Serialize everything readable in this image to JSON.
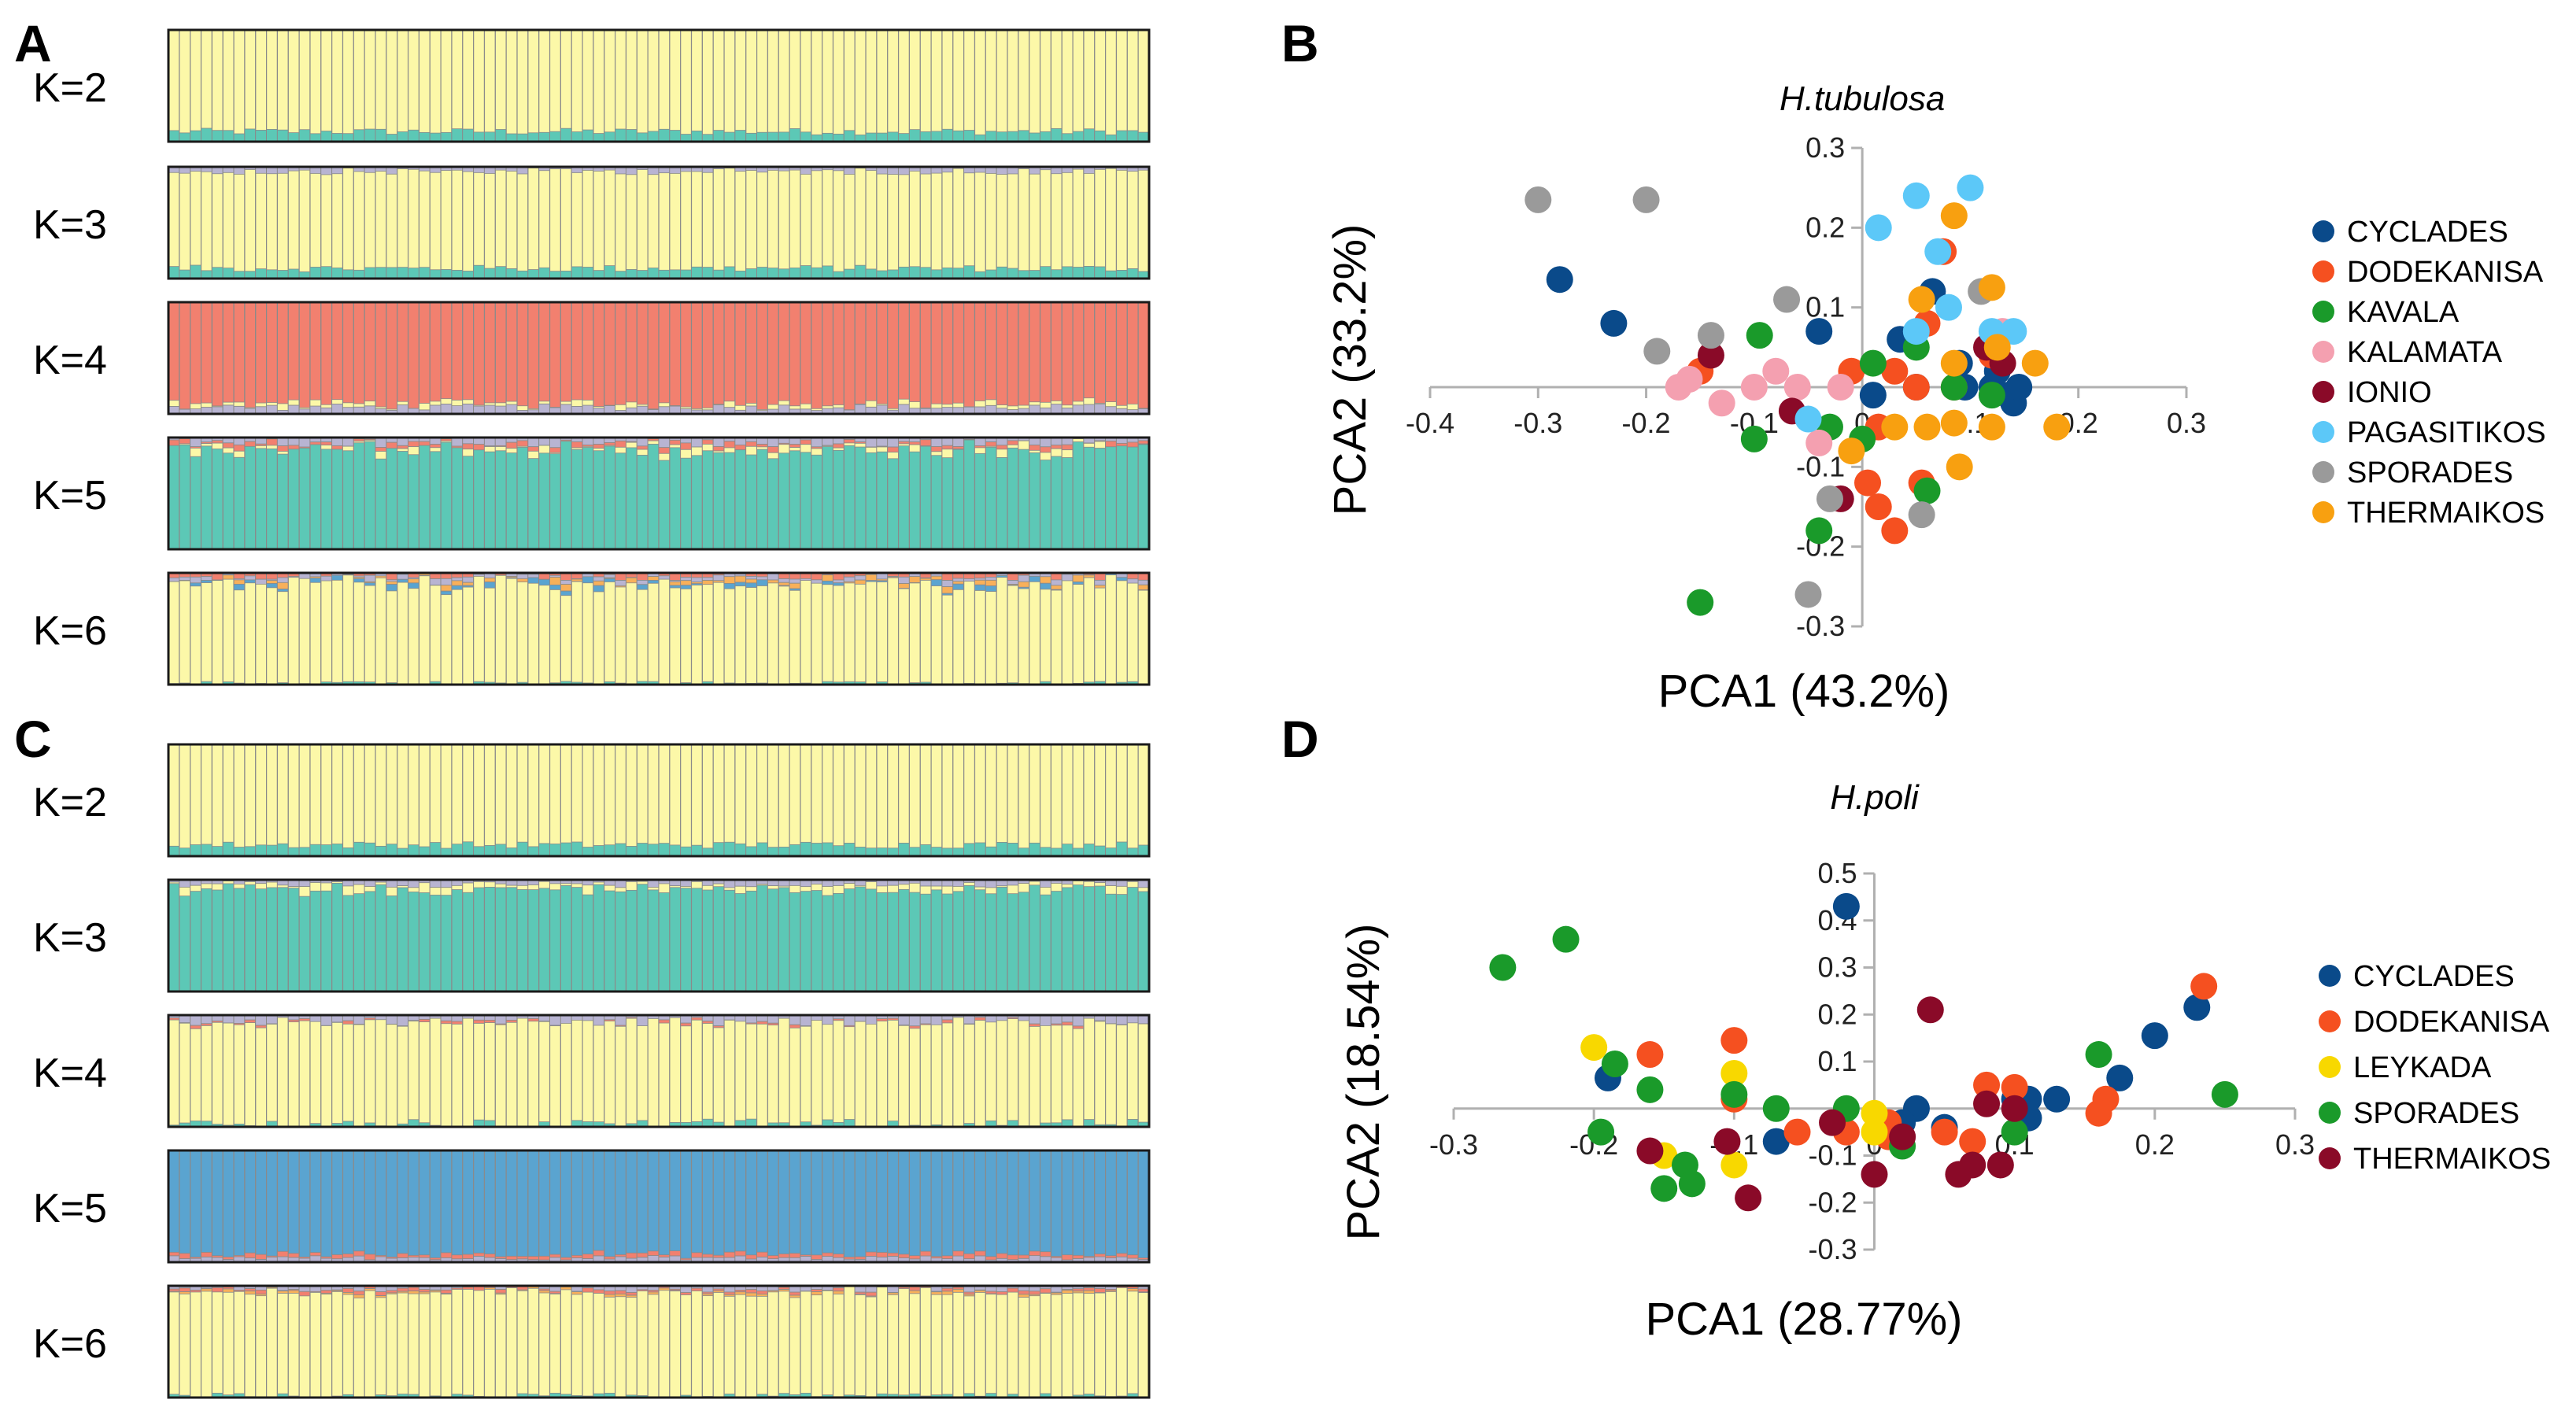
{
  "panels": {
    "A": {
      "letter": "A"
    },
    "B": {
      "letter": "B"
    },
    "C": {
      "letter": "C"
    },
    "D": {
      "letter": "D"
    }
  },
  "structure": {
    "n_individuals": 90,
    "palette": {
      "yellow": "#fcf8a8",
      "teal": "#5cc8b6",
      "lavender": "#b8b4d2",
      "salmon": "#f2806f",
      "blue": "#5aa4d0",
      "orange": "#f8b05a",
      "bar_stroke": "#8a8a8a",
      "box_stroke": "#1a1a1a"
    },
    "A": [
      {
        "label": "K=2",
        "base": "yellow",
        "layers": [
          [
            "teal",
            0.09,
            0.03
          ]
        ],
        "top": []
      },
      {
        "label": "K=3",
        "base": "yellow",
        "layers": [
          [
            "teal",
            0.09,
            0.03
          ]
        ],
        "top": [
          [
            "lavender",
            0.04,
            0.03
          ]
        ]
      },
      {
        "label": "K=4",
        "base": "salmon",
        "layers": [
          [
            "lavender",
            0.06,
            0.03
          ],
          [
            "yellow",
            0.03,
            0.03
          ]
        ],
        "top": []
      },
      {
        "label": "K=5",
        "base": "teal",
        "layers": [],
        "top": [
          [
            "lavender",
            0.05,
            0.04
          ],
          [
            "salmon",
            0.03,
            0.03
          ],
          [
            "yellow",
            0.03,
            0.05
          ]
        ]
      },
      {
        "label": "K=6",
        "base": "yellow",
        "layers": [
          [
            "teal",
            0.01,
            0.02
          ]
        ],
        "top": [
          [
            "salmon",
            0.03,
            0.04
          ],
          [
            "lavender",
            0.03,
            0.03
          ],
          [
            "orange",
            0.02,
            0.05
          ],
          [
            "blue",
            0.02,
            0.04
          ]
        ]
      }
    ],
    "C": [
      {
        "label": "K=2",
        "base": "yellow",
        "layers": [
          [
            "teal",
            0.1,
            0.03
          ]
        ],
        "top": []
      },
      {
        "label": "K=3",
        "base": "teal",
        "layers": [],
        "top": [
          [
            "lavender",
            0.04,
            0.03
          ],
          [
            "yellow",
            0.05,
            0.04
          ]
        ]
      },
      {
        "label": "K=4",
        "base": "yellow",
        "layers": [
          [
            "teal",
            0.02,
            0.05
          ]
        ],
        "top": [
          [
            "lavender",
            0.06,
            0.04
          ],
          [
            "salmon",
            0.01,
            0.02
          ]
        ]
      },
      {
        "label": "K=5",
        "base": "blue",
        "layers": [
          [
            "lavender",
            0.04,
            0.02
          ],
          [
            "salmon",
            0.03,
            0.02
          ]
        ],
        "top": []
      },
      {
        "label": "K=6",
        "base": "yellow",
        "layers": [
          [
            "teal",
            0.02,
            0.02
          ]
        ],
        "top": [
          [
            "lavender",
            0.03,
            0.03
          ],
          [
            "salmon",
            0.02,
            0.02
          ],
          [
            "orange",
            0.01,
            0.02
          ]
        ]
      }
    ]
  },
  "chart_data": [
    {
      "panel": "B",
      "type": "scatter",
      "title": "H.tubulosa",
      "xlabel": "PCA1 (43.2%)",
      "ylabel": "PCA2 (33.2%)",
      "xlim": [
        -0.4,
        0.3
      ],
      "ylim": [
        -0.3,
        0.3
      ],
      "xticks": [
        -0.4,
        -0.3,
        -0.2,
        -0.1,
        0,
        0.1,
        0.2,
        0.3
      ],
      "xtick_labels": [
        "-0.4",
        "-0.3",
        "-0.2",
        "-0.1",
        "0",
        "0.1",
        "0.2",
        "0.3"
      ],
      "yticks": [
        0.3,
        0.2,
        0.1,
        -0.1,
        -0.2,
        -0.3
      ],
      "ytick_labels": [
        "0.3",
        "0.2",
        "0.1",
        "-0.1",
        "-0.2",
        "-0.3"
      ],
      "legend_position": "right",
      "series": [
        {
          "name": "CYCLADES",
          "color": "#0a4a8a",
          "points": [
            [
              -0.28,
              0.135
            ],
            [
              -0.23,
              0.08
            ],
            [
              -0.04,
              0.07
            ],
            [
              0.01,
              -0.01
            ],
            [
              0.035,
              0.06
            ],
            [
              0.05,
              0.0
            ],
            [
              0.065,
              0.12
            ],
            [
              0.09,
              0.03
            ],
            [
              0.12,
              0.0
            ],
            [
              0.125,
              0.02
            ],
            [
              0.135,
              -0.01
            ],
            [
              0.14,
              -0.02
            ],
            [
              0.145,
              0.0
            ],
            [
              0.095,
              0.0
            ]
          ]
        },
        {
          "name": "DODEKANISA",
          "color": "#f55020",
          "points": [
            [
              0.03,
              0.02
            ],
            [
              0.05,
              0.0
            ],
            [
              0.075,
              0.17
            ],
            [
              0.06,
              0.08
            ],
            [
              -0.01,
              0.02
            ],
            [
              0.005,
              -0.12
            ],
            [
              0.015,
              -0.15
            ],
            [
              0.03,
              -0.18
            ],
            [
              0.055,
              -0.12
            ],
            [
              -0.15,
              0.02
            ],
            [
              0.12,
              0.04
            ],
            [
              0.015,
              -0.05
            ],
            [
              0.085,
              0.0
            ]
          ]
        },
        {
          "name": "KAVALA",
          "color": "#1a9a2a",
          "points": [
            [
              -0.15,
              -0.27
            ],
            [
              -0.095,
              0.065
            ],
            [
              -0.1,
              -0.065
            ],
            [
              -0.03,
              -0.05
            ],
            [
              0.01,
              0.03
            ],
            [
              0.05,
              0.05
            ],
            [
              0.06,
              -0.13
            ],
            [
              0.085,
              0.0
            ],
            [
              0.0,
              -0.065
            ],
            [
              -0.04,
              -0.18
            ],
            [
              0.12,
              -0.01
            ]
          ]
        },
        {
          "name": "KALAMATA",
          "color": "#f4a0b0",
          "points": [
            [
              -0.17,
              0.0
            ],
            [
              -0.16,
              0.01
            ],
            [
              -0.13,
              -0.02
            ],
            [
              -0.1,
              0.0
            ],
            [
              -0.08,
              0.02
            ],
            [
              -0.06,
              0.0
            ],
            [
              -0.04,
              -0.07
            ],
            [
              -0.02,
              0.0
            ],
            [
              0.13,
              0.07
            ]
          ]
        },
        {
          "name": "IONIO",
          "color": "#8a0a28",
          "points": [
            [
              -0.14,
              0.04
            ],
            [
              -0.065,
              -0.03
            ],
            [
              -0.02,
              -0.14
            ],
            [
              0.115,
              0.05
            ],
            [
              0.13,
              0.03
            ]
          ]
        },
        {
          "name": "PAGASITIKOS",
          "color": "#5cc8f8",
          "points": [
            [
              0.015,
              0.2
            ],
            [
              0.05,
              0.24
            ],
            [
              0.1,
              0.25
            ],
            [
              0.07,
              0.17
            ],
            [
              0.05,
              0.07
            ],
            [
              0.12,
              0.07
            ],
            [
              0.14,
              0.07
            ],
            [
              0.08,
              0.1
            ],
            [
              -0.05,
              -0.04
            ]
          ]
        },
        {
          "name": "SPORADES",
          "color": "#9a9a9a",
          "points": [
            [
              -0.3,
              0.235
            ],
            [
              -0.2,
              0.235
            ],
            [
              -0.19,
              0.045
            ],
            [
              -0.14,
              0.065
            ],
            [
              -0.07,
              0.11
            ],
            [
              0.11,
              0.12
            ],
            [
              -0.05,
              -0.26
            ],
            [
              0.055,
              -0.16
            ],
            [
              -0.03,
              -0.14
            ]
          ]
        },
        {
          "name": "THERMAIKOS",
          "color": "#f8a010",
          "points": [
            [
              0.085,
              0.215
            ],
            [
              0.055,
              0.11
            ],
            [
              0.12,
              0.125
            ],
            [
              0.085,
              0.03
            ],
            [
              0.12,
              -0.05
            ],
            [
              0.16,
              0.03
            ],
            [
              0.18,
              -0.05
            ],
            [
              0.09,
              -0.1
            ],
            [
              0.06,
              -0.05
            ],
            [
              0.03,
              -0.05
            ],
            [
              -0.01,
              -0.08
            ],
            [
              0.085,
              -0.045
            ],
            [
              0.125,
              0.05
            ]
          ]
        }
      ]
    },
    {
      "panel": "D",
      "type": "scatter",
      "title": "H.poli",
      "xlabel": "PCA1 (28.77%)",
      "ylabel": "PCA2 (18.54%)",
      "xlim": [
        -0.3,
        0.3
      ],
      "ylim": [
        -0.3,
        0.5
      ],
      "xticks": [
        -0.3,
        -0.2,
        -0.1,
        0,
        0.1,
        0.2,
        0.3
      ],
      "xtick_labels": [
        "-0.3",
        "-0.2",
        "-0.1",
        "0",
        "0.1",
        "0.2",
        "0.3"
      ],
      "yticks": [
        0.5,
        0.4,
        0.3,
        0.2,
        0.1,
        -0.1,
        -0.2,
        -0.3
      ],
      "ytick_labels": [
        "0.5",
        "0.4",
        "0.3",
        "0.2",
        "0.1",
        "-0.1",
        "-0.2",
        "-0.3"
      ],
      "legend_position": "right",
      "series": [
        {
          "name": "CYCLADES",
          "color": "#0a4a8a",
          "points": [
            [
              -0.02,
              0.43
            ],
            [
              -0.19,
              0.065
            ],
            [
              0.23,
              0.215
            ],
            [
              0.2,
              0.155
            ],
            [
              0.175,
              0.065
            ],
            [
              0.13,
              0.02
            ],
            [
              0.11,
              0.02
            ],
            [
              0.11,
              -0.02
            ],
            [
              0.1,
              0.02
            ],
            [
              0.05,
              -0.04
            ],
            [
              0.03,
              0.0
            ],
            [
              0.02,
              -0.03
            ],
            [
              -0.07,
              -0.07
            ]
          ]
        },
        {
          "name": "DODEKANISA",
          "color": "#f55020",
          "points": [
            [
              0.235,
              0.26
            ],
            [
              -0.16,
              0.115
            ],
            [
              -0.1,
              0.145
            ],
            [
              -0.1,
              0.02
            ],
            [
              -0.055,
              -0.05
            ],
            [
              0.01,
              -0.03
            ],
            [
              0.01,
              -0.06
            ],
            [
              0.05,
              -0.05
            ],
            [
              0.08,
              0.05
            ],
            [
              0.1,
              0.045
            ],
            [
              0.165,
              0.02
            ],
            [
              0.16,
              -0.01
            ],
            [
              -0.02,
              -0.05
            ],
            [
              0.07,
              -0.07
            ]
          ]
        },
        {
          "name": "LEYKADA",
          "color": "#f8d800",
          "points": [
            [
              -0.2,
              0.13
            ],
            [
              -0.1,
              0.075
            ],
            [
              -0.15,
              -0.1
            ],
            [
              -0.1,
              -0.12
            ],
            [
              0.0,
              -0.05
            ],
            [
              0.0,
              -0.01
            ]
          ]
        },
        {
          "name": "SPORADES",
          "color": "#1a9a2a",
          "points": [
            [
              -0.265,
              0.3
            ],
            [
              -0.22,
              0.36
            ],
            [
              -0.185,
              0.095
            ],
            [
              -0.195,
              -0.05
            ],
            [
              -0.16,
              0.04
            ],
            [
              -0.1,
              0.03
            ],
            [
              -0.15,
              -0.17
            ],
            [
              -0.135,
              -0.12
            ],
            [
              -0.13,
              -0.16
            ],
            [
              -0.07,
              0.0
            ],
            [
              -0.02,
              0.0
            ],
            [
              0.16,
              0.115
            ],
            [
              0.25,
              0.03
            ],
            [
              0.1,
              -0.05
            ],
            [
              0.02,
              -0.08
            ]
          ]
        },
        {
          "name": "THERMAIKOS",
          "color": "#8a0a28",
          "points": [
            [
              0.04,
              0.21
            ],
            [
              -0.16,
              -0.09
            ],
            [
              -0.105,
              -0.07
            ],
            [
              -0.09,
              -0.19
            ],
            [
              -0.03,
              -0.03
            ],
            [
              0.0,
              -0.14
            ],
            [
              0.06,
              -0.14
            ],
            [
              0.07,
              -0.12
            ],
            [
              0.08,
              0.01
            ],
            [
              0.1,
              0.0
            ],
            [
              0.09,
              -0.12
            ],
            [
              0.02,
              -0.06
            ]
          ]
        }
      ]
    }
  ]
}
